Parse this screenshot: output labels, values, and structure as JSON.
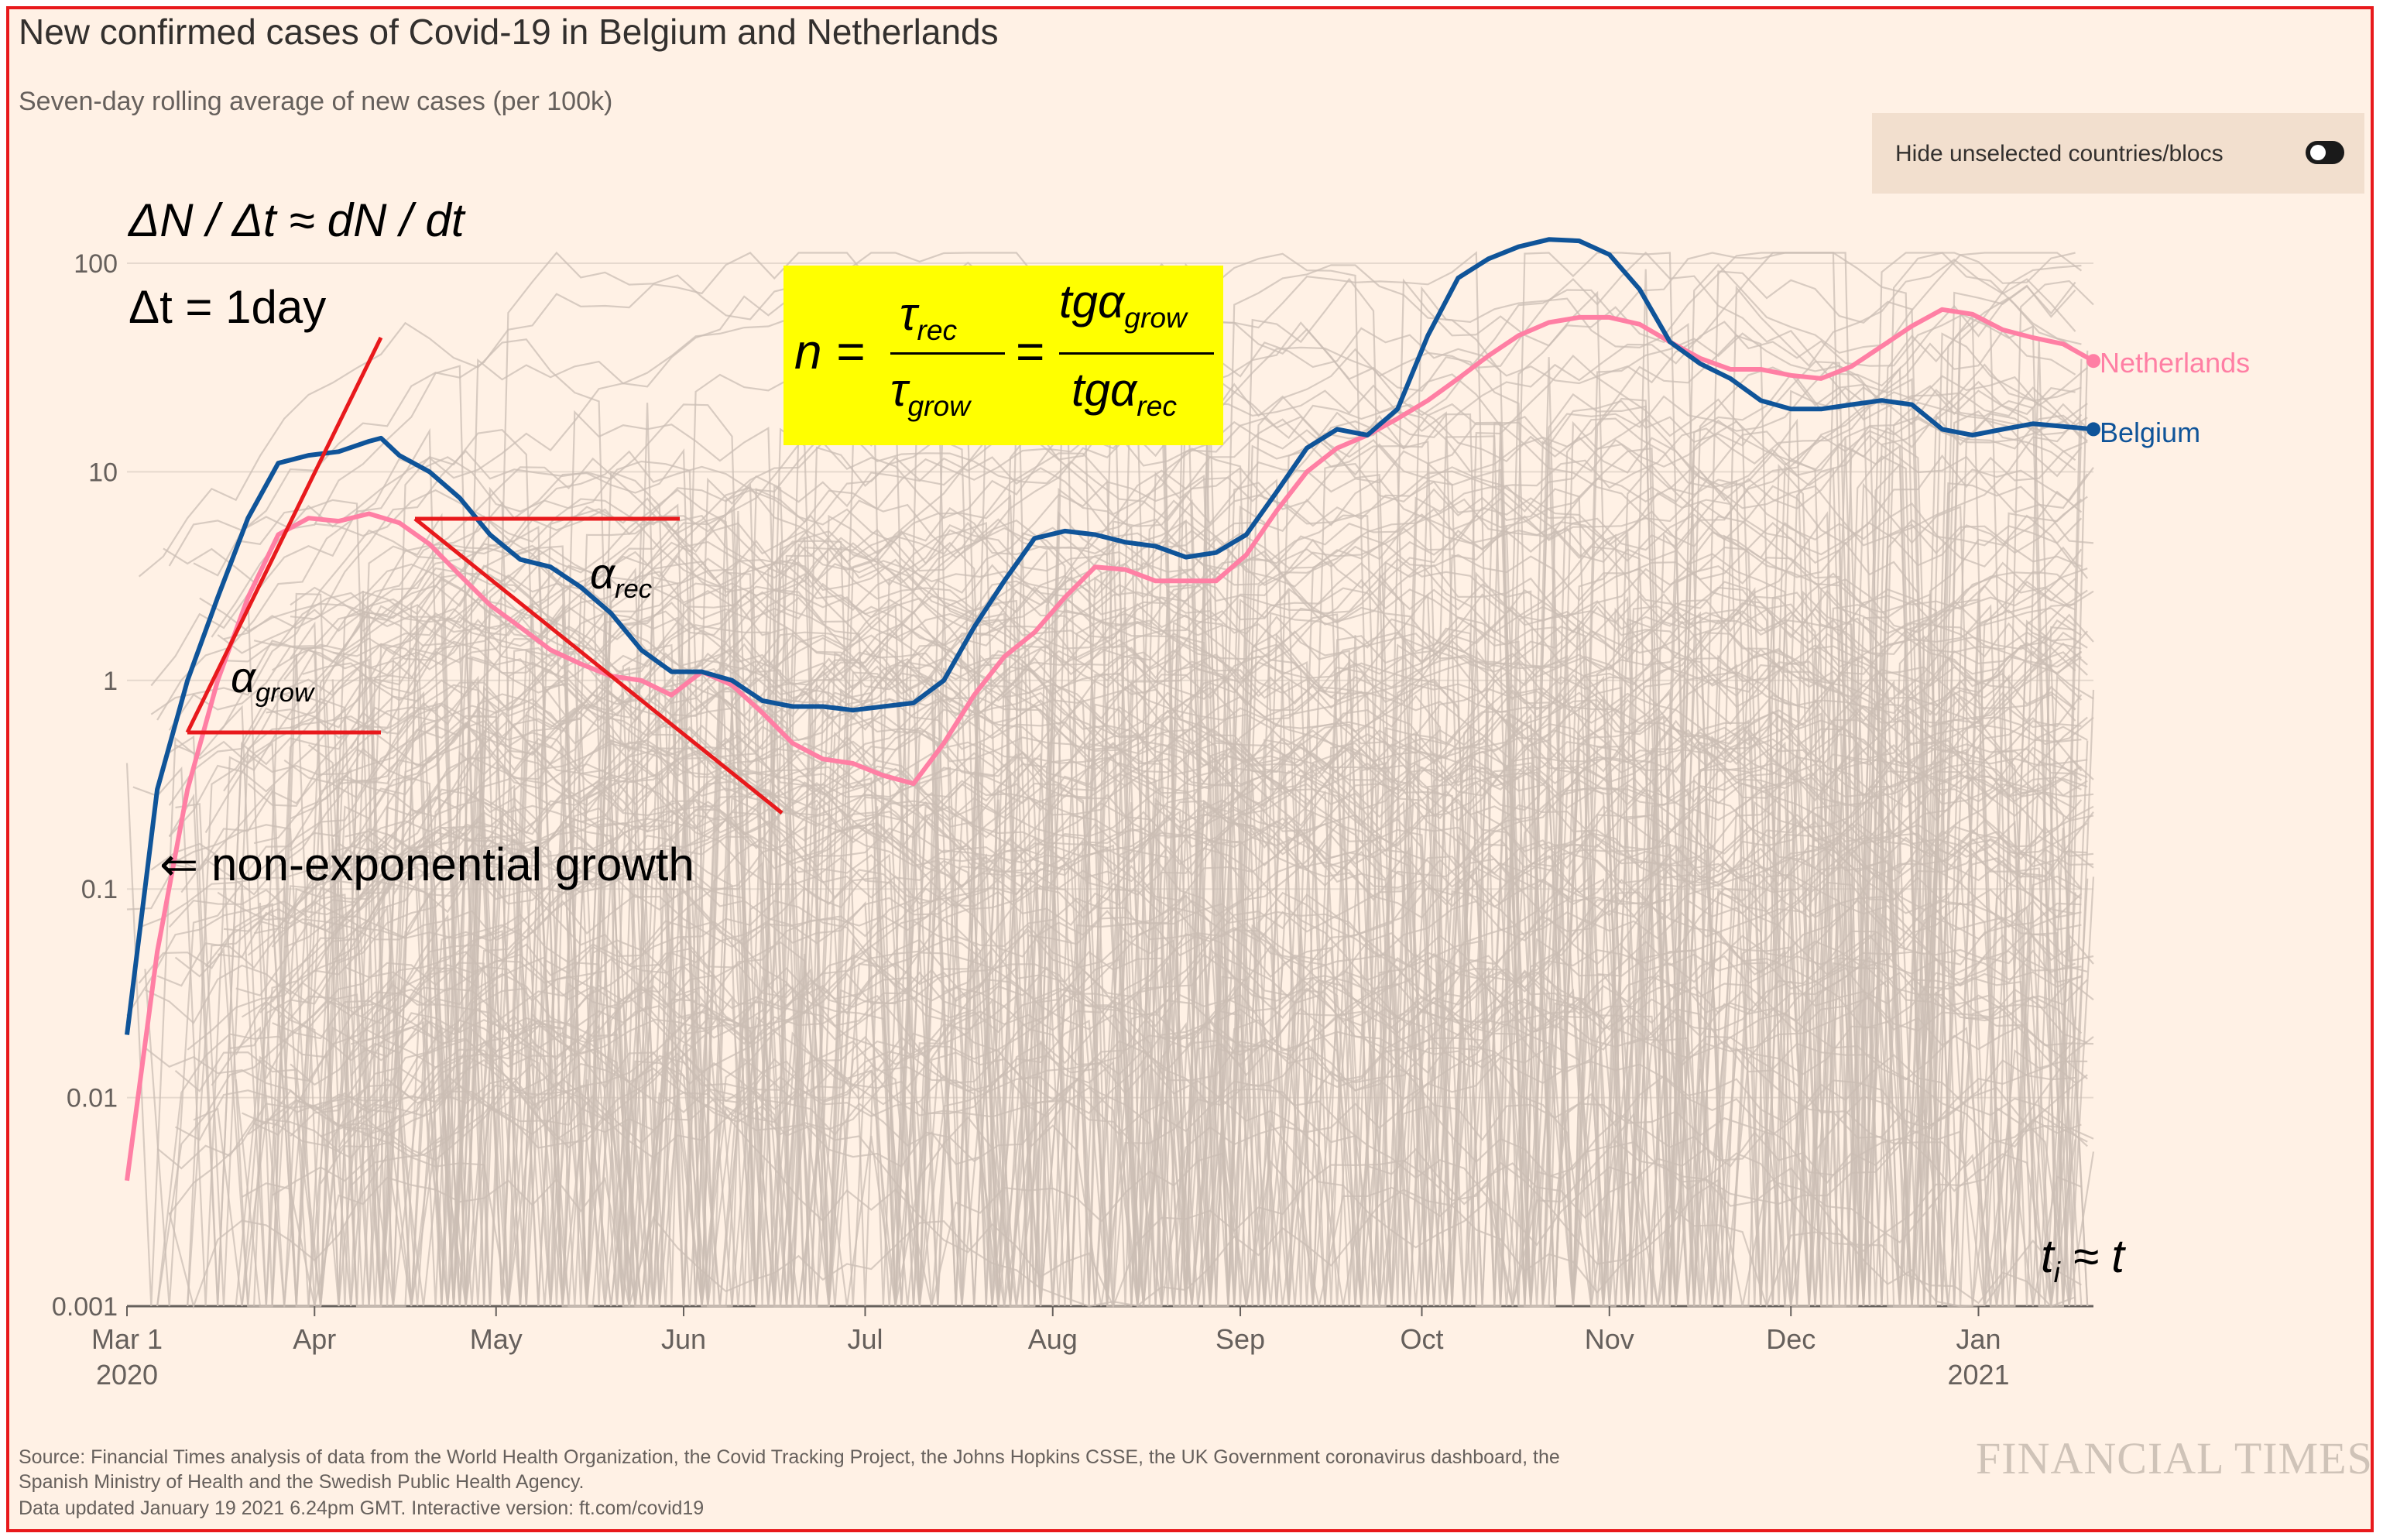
{
  "header": {
    "title": "New confirmed cases of Covid-19 in Belgium and Netherlands",
    "subtitle": "Seven-day rolling average of new cases (per 100k)",
    "toggle_label": "Hide unselected countries/blocs"
  },
  "colors": {
    "background": "#fff1e5",
    "belgium": "#0f5499",
    "netherlands": "#ff7fa4",
    "other_countries": "#cbbdb4",
    "annotation": "#e8191c",
    "formula_bg": "#ffff00",
    "frame": "#e8191c"
  },
  "chart_data": {
    "type": "line",
    "yscale": "log",
    "ylim": [
      0.001,
      150
    ],
    "y_ticks": [
      {
        "value": 0.001,
        "label": "0.001"
      },
      {
        "value": 0.01,
        "label": "0.01"
      },
      {
        "value": 0.1,
        "label": "0.1"
      },
      {
        "value": 1,
        "label": "1"
      },
      {
        "value": 10,
        "label": "10"
      },
      {
        "value": 100,
        "label": "100"
      }
    ],
    "x_unit": "days since 2020-03-01",
    "xlim": [
      0,
      325
    ],
    "x_ticks": [
      {
        "value": 0,
        "label": "Mar 1",
        "sub": "2020"
      },
      {
        "value": 31,
        "label": "Apr",
        "sub": ""
      },
      {
        "value": 61,
        "label": "May",
        "sub": ""
      },
      {
        "value": 92,
        "label": "Jun",
        "sub": ""
      },
      {
        "value": 122,
        "label": "Jul",
        "sub": ""
      },
      {
        "value": 153,
        "label": "Aug",
        "sub": ""
      },
      {
        "value": 184,
        "label": "Sep",
        "sub": ""
      },
      {
        "value": 214,
        "label": "Oct",
        "sub": ""
      },
      {
        "value": 245,
        "label": "Nov",
        "sub": ""
      },
      {
        "value": 275,
        "label": "Dec",
        "sub": ""
      },
      {
        "value": 306,
        "label": "Jan",
        "sub": "2021"
      }
    ],
    "series": [
      {
        "name": "Netherlands",
        "points": [
          [
            0,
            0.004
          ],
          [
            5,
            0.05
          ],
          [
            10,
            0.3
          ],
          [
            15,
            1.0
          ],
          [
            20,
            2.5
          ],
          [
            25,
            5.0
          ],
          [
            30,
            6.0
          ],
          [
            35,
            5.8
          ],
          [
            40,
            6.3
          ],
          [
            45,
            5.7
          ],
          [
            50,
            4.5
          ],
          [
            55,
            3.2
          ],
          [
            60,
            2.3
          ],
          [
            65,
            1.8
          ],
          [
            70,
            1.4
          ],
          [
            75,
            1.2
          ],
          [
            80,
            1.05
          ],
          [
            85,
            1.0
          ],
          [
            90,
            0.85
          ],
          [
            95,
            1.1
          ],
          [
            100,
            0.95
          ],
          [
            105,
            0.7
          ],
          [
            110,
            0.5
          ],
          [
            115,
            0.42
          ],
          [
            120,
            0.4
          ],
          [
            125,
            0.35
          ],
          [
            130,
            0.32
          ],
          [
            135,
            0.5
          ],
          [
            140,
            0.85
          ],
          [
            145,
            1.3
          ],
          [
            150,
            1.7
          ],
          [
            155,
            2.5
          ],
          [
            160,
            3.5
          ],
          [
            165,
            3.4
          ],
          [
            170,
            3.0
          ],
          [
            175,
            3.0
          ],
          [
            180,
            3.0
          ],
          [
            185,
            4.0
          ],
          [
            190,
            6.5
          ],
          [
            195,
            10
          ],
          [
            200,
            13
          ],
          [
            205,
            15
          ],
          [
            210,
            18
          ],
          [
            215,
            22
          ],
          [
            220,
            28
          ],
          [
            225,
            36
          ],
          [
            230,
            45
          ],
          [
            235,
            52
          ],
          [
            240,
            55
          ],
          [
            245,
            55
          ],
          [
            250,
            51
          ],
          [
            255,
            42
          ],
          [
            260,
            35
          ],
          [
            265,
            31
          ],
          [
            270,
            31
          ],
          [
            275,
            29
          ],
          [
            280,
            28
          ],
          [
            285,
            32
          ],
          [
            290,
            40
          ],
          [
            295,
            50
          ],
          [
            300,
            60
          ],
          [
            305,
            57
          ],
          [
            310,
            48
          ],
          [
            315,
            44
          ],
          [
            320,
            41
          ],
          [
            325,
            34
          ]
        ]
      },
      {
        "name": "Belgium",
        "points": [
          [
            0,
            0.02
          ],
          [
            5,
            0.3
          ],
          [
            10,
            1.0
          ],
          [
            15,
            2.5
          ],
          [
            20,
            6.0
          ],
          [
            25,
            11
          ],
          [
            30,
            12
          ],
          [
            35,
            12.5
          ],
          [
            40,
            14
          ],
          [
            42,
            14.5
          ],
          [
            45,
            12
          ],
          [
            50,
            10
          ],
          [
            55,
            7.5
          ],
          [
            60,
            5.0
          ],
          [
            65,
            3.8
          ],
          [
            70,
            3.5
          ],
          [
            75,
            2.8
          ],
          [
            80,
            2.1
          ],
          [
            85,
            1.4
          ],
          [
            90,
            1.1
          ],
          [
            95,
            1.1
          ],
          [
            100,
            1.0
          ],
          [
            105,
            0.8
          ],
          [
            110,
            0.75
          ],
          [
            115,
            0.75
          ],
          [
            120,
            0.72
          ],
          [
            125,
            0.75
          ],
          [
            130,
            0.78
          ],
          [
            135,
            1.0
          ],
          [
            140,
            1.8
          ],
          [
            145,
            3.0
          ],
          [
            150,
            4.8
          ],
          [
            155,
            5.2
          ],
          [
            160,
            5.0
          ],
          [
            165,
            4.6
          ],
          [
            170,
            4.4
          ],
          [
            175,
            3.9
          ],
          [
            180,
            4.1
          ],
          [
            185,
            5.0
          ],
          [
            190,
            8.0
          ],
          [
            195,
            13
          ],
          [
            200,
            16
          ],
          [
            205,
            15
          ],
          [
            210,
            20
          ],
          [
            215,
            45
          ],
          [
            220,
            85
          ],
          [
            225,
            105
          ],
          [
            230,
            120
          ],
          [
            235,
            130
          ],
          [
            240,
            128
          ],
          [
            245,
            110
          ],
          [
            250,
            75
          ],
          [
            255,
            42
          ],
          [
            260,
            33
          ],
          [
            265,
            28
          ],
          [
            270,
            22
          ],
          [
            275,
            20
          ],
          [
            280,
            20
          ],
          [
            285,
            21
          ],
          [
            290,
            22
          ],
          [
            295,
            21
          ],
          [
            300,
            16
          ],
          [
            305,
            15
          ],
          [
            310,
            16
          ],
          [
            315,
            17
          ],
          [
            320,
            16.5
          ],
          [
            325,
            16
          ]
        ]
      }
    ],
    "background_series_note": "grey lines for other countries/blocs"
  },
  "annotations": {
    "eq_line1": "ΔN / Δt ≈ dN / dt",
    "eq_line2": "Δt = 1day",
    "alpha_grow_base": "α",
    "alpha_grow_sub": "grow",
    "alpha_rec_base": "α",
    "alpha_rec_sub": "rec",
    "non_exponential": "⇐ non-exponential growth",
    "formula_n": "n =",
    "formula_tau": "τ",
    "formula_sub_rec": "rec",
    "formula_sub_grow": "grow",
    "formula_tg": "tgα",
    "formula_equals": "=",
    "ti_approx": "t",
    "ti_sub": "i",
    "ti_rest": "≈ t"
  },
  "footer": {
    "source_line1": "Source: Financial Times analysis of data from the World Health Organization, the Covid Tracking Project, the Johns Hopkins CSSE, the UK Government coronavirus dashboard, the",
    "source_line2": "Spanish Ministry of Health and the Swedish Public Health Agency.",
    "updated": "Data updated January 19 2021 6.24pm GMT. Interactive version: ft.com/covid19",
    "logo": "FINANCIAL TIMES"
  }
}
